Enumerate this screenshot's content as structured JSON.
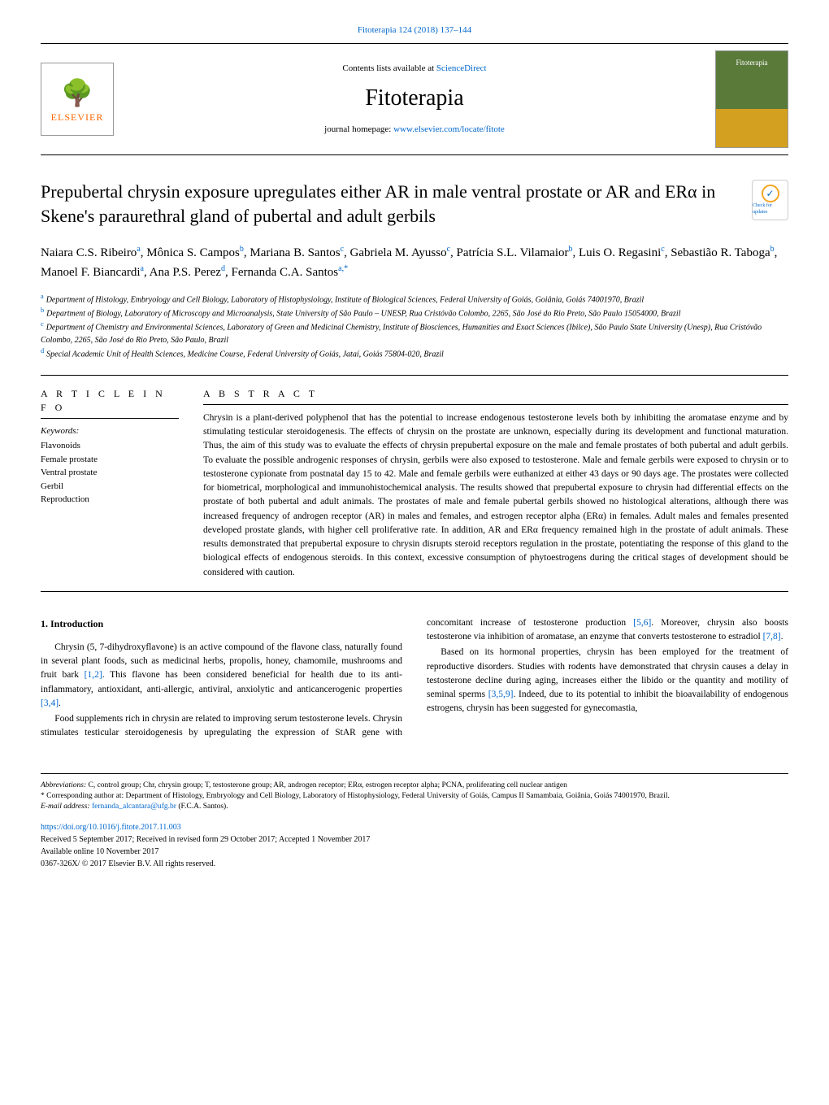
{
  "journal_ref": "Fitoterapia 124 (2018) 137–144",
  "header": {
    "contents_prefix": "Contents lists available at ",
    "contents_link": "ScienceDirect",
    "journal_name": "Fitoterapia",
    "homepage_prefix": "journal homepage: ",
    "homepage_link": "www.elsevier.com/locate/fitote",
    "publisher_brand": "ELSEVIER",
    "cover_label": "Fitoterapia"
  },
  "check_badge": "Check for updates",
  "title": "Prepubertal chrysin exposure upregulates either AR in male ventral prostate or AR and ERα in Skene's paraurethral gland of pubertal and adult gerbils",
  "authors_html": "Naiara C.S. Ribeiro<sup>a</sup>, Mônica S. Campos<sup>b</sup>, Mariana B. Santos<sup>c</sup>, Gabriela M. Ayusso<sup>c</sup>, Patrícia S.L. Vilamaior<sup>b</sup>, Luis O. Regasini<sup>c</sup>, Sebastião R. Taboga<sup>b</sup>, Manoel F. Biancardi<sup>a</sup>, Ana P.S. Perez<sup>d</sup>, Fernanda C.A. Santos<sup>a,</sup><sup>*</sup>",
  "affiliations": [
    {
      "sup": "a",
      "text": "Department of Histology, Embryology and Cell Biology, Laboratory of Histophysiology, Institute of Biological Sciences, Federal University of Goiás, Goiânia, Goiás 74001970, Brazil"
    },
    {
      "sup": "b",
      "text": "Department of Biology, Laboratory of Microscopy and Microanalysis, State University of São Paulo – UNESP, Rua Cristóvão Colombo, 2265, São José do Rio Preto, São Paulo 15054000, Brazil"
    },
    {
      "sup": "c",
      "text": "Department of Chemistry and Environmental Sciences, Laboratory of Green and Medicinal Chemistry, Institute of Biosciences, Humanities and Exact Sciences (Ibilce), São Paulo State University (Unesp), Rua Cristóvão Colombo, 2265, São José do Rio Preto, São Paulo, Brazil"
    },
    {
      "sup": "d",
      "text": "Special Academic Unit of Health Sciences, Medicine Course, Federal University of Goiás, Jataí, Goiás 75804-020, Brazil"
    }
  ],
  "article_info": {
    "head": "A R T I C L E  I N F O",
    "kw_label": "Keywords:",
    "keywords": [
      "Flavonoids",
      "Female prostate",
      "Ventral prostate",
      "Gerbil",
      "Reproduction"
    ]
  },
  "abstract": {
    "head": "A B S T R A C T",
    "text": "Chrysin is a plant-derived polyphenol that has the potential to increase endogenous testosterone levels both by inhibiting the aromatase enzyme and by stimulating testicular steroidogenesis. The effects of chrysin on the prostate are unknown, especially during its development and functional maturation. Thus, the aim of this study was to evaluate the effects of chrysin prepubertal exposure on the male and female prostates of both pubertal and adult gerbils. To evaluate the possible androgenic responses of chrysin, gerbils were also exposed to testosterone. Male and female gerbils were exposed to chrysin or to testosterone cypionate from postnatal day 15 to 42. Male and female gerbils were euthanized at either 43 days or 90 days age. The prostates were collected for biometrical, morphological and immunohistochemical analysis. The results showed that prepubertal exposure to chrysin had differential effects on the prostate of both pubertal and adult animals. The prostates of male and female pubertal gerbils showed no histological alterations, although there was increased frequency of androgen receptor (AR) in males and females, and estrogen receptor alpha (ERα) in females. Adult males and females presented developed prostate glands, with higher cell proliferative rate. In addition, AR and ERα frequency remained high in the prostate of adult animals. These results demonstrated that prepubertal exposure to chrysin disrupts steroid receptors regulation in the prostate, potentiating the response of this gland to the biological effects of endogenous steroids. In this context, excessive consumption of phytoestrogens during the critical stages of development should be considered with caution."
  },
  "intro": {
    "head": "1. Introduction",
    "p1": "Chrysin (5, 7-dihydroxyflavone) is an active compound of the flavone class, naturally found in several plant foods, such as medicinal herbs, propolis, honey, chamomile, mushrooms and fruit bark ",
    "p1_ref": "[1,2]",
    "p1b": ". This flavone has been considered beneficial for health due to its anti-inflammatory, antioxidant, anti-allergic, antiviral, anxiolytic and anticancerogenic properties ",
    "p1b_ref": "[3,4]",
    "p2": "Food supplements rich in chrysin are related to improving serum testosterone levels. Chrysin stimulates testicular steroidogenesis by upregulating the expression of StAR gene with concomitant increase of testosterone production ",
    "p2_ref": "[5,6]",
    "p2b": ". Moreover, chrysin also boosts testosterone via inhibition of aromatase, an enzyme that converts testosterone to estradiol ",
    "p2b_ref": "[7,8]",
    "p3": "Based on its hormonal properties, chrysin has been employed for the treatment of reproductive disorders. Studies with rodents have demonstrated that chrysin causes a delay in testosterone decline during aging, increases either the libido or the quantity and motility of seminal sperms ",
    "p3_ref": "[3,5,9]",
    "p3b": ". Indeed, due to its potential to inhibit the bioavailability of endogenous estrogens, chrysin has been suggested for gynecomastia,"
  },
  "footer": {
    "abbrev_label": "Abbreviations:",
    "abbrev_text": " C, control group; Chr, chrysin group; T, testosterone group; AR, androgen receptor; ERα, estrogen receptor alpha; PCNA, proliferating cell nuclear antigen",
    "corr_label": "* Corresponding author at:",
    "corr_text": " Department of Histology, Embryology and Cell Biology, Laboratory of Histophysiology, Federal University of Goiás, Campus II Samambaia, Goiânia, Goiás 74001970, Brazil.",
    "email_label": "E-mail address: ",
    "email": "fernanda_alcantara@ufg.br",
    "email_suffix": " (F.C.A. Santos).",
    "doi": "https://doi.org/10.1016/j.fitote.2017.11.003",
    "received": "Received 5 September 2017; Received in revised form 29 October 2017; Accepted 1 November 2017",
    "available": "Available online 10 November 2017",
    "copyright": "0367-326X/ © 2017 Elsevier B.V. All rights reserved."
  }
}
